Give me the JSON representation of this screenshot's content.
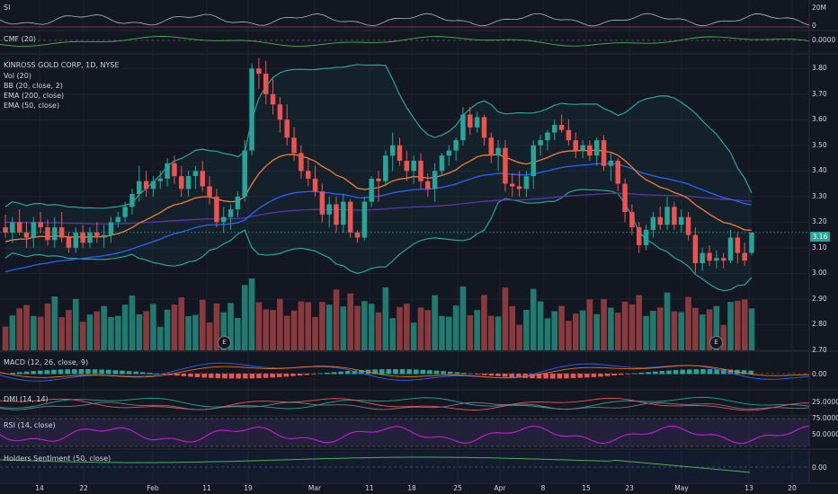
{
  "colors": {
    "background": "#131722",
    "up": "#26a69a",
    "down": "#ef5350",
    "up_volume": "#1f7a70",
    "down_volume": "#8a3a3d",
    "bb": "#26a69a",
    "ema200": "#5b35a8",
    "ema50": "#2962ff",
    "ema20": "#f57c3a",
    "rsi": "#b91dd0"
  },
  "panes": {
    "si": {
      "label": "SI",
      "axis": [
        "20M",
        "0"
      ]
    },
    "cmf": {
      "label": "CMF (20)",
      "axis": [
        "0.0000"
      ]
    },
    "main": {
      "symbol_line": "KINROSS GOLD CORP, 1D, NYSE",
      "indicators": [
        "Vol (20)",
        "BB (20, close, 2)",
        "EMA (200, close)",
        "EMA (50, close)"
      ],
      "axis": [
        "3.80",
        "3.70",
        "3.60",
        "3.50",
        "3.40",
        "3.30",
        "3.20",
        "3.10",
        "3.00",
        "2.90",
        "2.80",
        "2.70"
      ],
      "last_price": "3.16",
      "earnings_marker": "E"
    },
    "macd": {
      "label": "MACD (12, 26, close, 9)",
      "axis": [
        "0.00"
      ]
    },
    "dmi": {
      "label": "DMI (14, 14)",
      "axis": [
        "25.0000"
      ]
    },
    "rsi": {
      "label": "RSI (14, close)",
      "axis": [
        "75.0000",
        "50.0000"
      ]
    },
    "holders": {
      "label": "Holders Sentiment (50, close)",
      "axis": [
        "0.00"
      ]
    }
  },
  "x_axis": [
    "14",
    "22",
    "Feb",
    "11",
    "19",
    "Mar",
    "11",
    "18",
    "25",
    "Apr",
    "8",
    "15",
    "23",
    "May",
    "13",
    "20"
  ],
  "chart_data": {
    "type": "candlestick",
    "price_range": [
      2.7,
      3.85
    ],
    "candles": [
      {
        "o": 3.18,
        "h": 3.23,
        "l": 3.14,
        "c": 3.16
      },
      {
        "o": 3.16,
        "h": 3.22,
        "l": 3.12,
        "c": 3.2
      },
      {
        "o": 3.2,
        "h": 3.25,
        "l": 3.15,
        "c": 3.16
      },
      {
        "o": 3.16,
        "h": 3.2,
        "l": 3.1,
        "c": 3.14
      },
      {
        "o": 3.14,
        "h": 3.22,
        "l": 3.1,
        "c": 3.2
      },
      {
        "o": 3.2,
        "h": 3.24,
        "l": 3.16,
        "c": 3.18
      },
      {
        "o": 3.18,
        "h": 3.21,
        "l": 3.11,
        "c": 3.13
      },
      {
        "o": 3.13,
        "h": 3.22,
        "l": 3.1,
        "c": 3.18
      },
      {
        "o": 3.18,
        "h": 3.24,
        "l": 3.12,
        "c": 3.14
      },
      {
        "o": 3.14,
        "h": 3.16,
        "l": 3.08,
        "c": 3.1
      },
      {
        "o": 3.1,
        "h": 3.18,
        "l": 3.08,
        "c": 3.16
      },
      {
        "o": 3.16,
        "h": 3.19,
        "l": 3.1,
        "c": 3.12
      },
      {
        "o": 3.12,
        "h": 3.18,
        "l": 3.1,
        "c": 3.16
      },
      {
        "o": 3.16,
        "h": 3.2,
        "l": 3.12,
        "c": 3.14
      },
      {
        "o": 3.14,
        "h": 3.19,
        "l": 3.1,
        "c": 3.15
      },
      {
        "o": 3.15,
        "h": 3.22,
        "l": 3.12,
        "c": 3.2
      },
      {
        "o": 3.2,
        "h": 3.24,
        "l": 3.18,
        "c": 3.22
      },
      {
        "o": 3.22,
        "h": 3.28,
        "l": 3.2,
        "c": 3.26
      },
      {
        "o": 3.26,
        "h": 3.33,
        "l": 3.23,
        "c": 3.31
      },
      {
        "o": 3.31,
        "h": 3.42,
        "l": 3.28,
        "c": 3.36
      },
      {
        "o": 3.36,
        "h": 3.4,
        "l": 3.3,
        "c": 3.33
      },
      {
        "o": 3.33,
        "h": 3.38,
        "l": 3.3,
        "c": 3.36
      },
      {
        "o": 3.36,
        "h": 3.4,
        "l": 3.33,
        "c": 3.37
      },
      {
        "o": 3.37,
        "h": 3.45,
        "l": 3.34,
        "c": 3.43
      },
      {
        "o": 3.43,
        "h": 3.46,
        "l": 3.35,
        "c": 3.38
      },
      {
        "o": 3.38,
        "h": 3.42,
        "l": 3.3,
        "c": 3.33
      },
      {
        "o": 3.33,
        "h": 3.4,
        "l": 3.3,
        "c": 3.38
      },
      {
        "o": 3.38,
        "h": 3.42,
        "l": 3.33,
        "c": 3.4
      },
      {
        "o": 3.4,
        "h": 3.44,
        "l": 3.32,
        "c": 3.34
      },
      {
        "o": 3.34,
        "h": 3.38,
        "l": 3.27,
        "c": 3.3
      },
      {
        "o": 3.3,
        "h": 3.33,
        "l": 3.18,
        "c": 3.2
      },
      {
        "o": 3.2,
        "h": 3.26,
        "l": 3.16,
        "c": 3.22
      },
      {
        "o": 3.22,
        "h": 3.27,
        "l": 3.17,
        "c": 3.25
      },
      {
        "o": 3.25,
        "h": 3.32,
        "l": 3.22,
        "c": 3.3
      },
      {
        "o": 3.3,
        "h": 3.52,
        "l": 3.28,
        "c": 3.48
      },
      {
        "o": 3.48,
        "h": 3.82,
        "l": 3.46,
        "c": 3.8
      },
      {
        "o": 3.8,
        "h": 3.84,
        "l": 3.72,
        "c": 3.78
      },
      {
        "o": 3.78,
        "h": 3.83,
        "l": 3.66,
        "c": 3.7
      },
      {
        "o": 3.7,
        "h": 3.76,
        "l": 3.62,
        "c": 3.66
      },
      {
        "o": 3.66,
        "h": 3.69,
        "l": 3.55,
        "c": 3.6
      },
      {
        "o": 3.6,
        "h": 3.66,
        "l": 3.5,
        "c": 3.53
      },
      {
        "o": 3.53,
        "h": 3.57,
        "l": 3.44,
        "c": 3.47
      },
      {
        "o": 3.47,
        "h": 3.5,
        "l": 3.37,
        "c": 3.4
      },
      {
        "o": 3.4,
        "h": 3.45,
        "l": 3.34,
        "c": 3.37
      },
      {
        "o": 3.37,
        "h": 3.42,
        "l": 3.3,
        "c": 3.32
      },
      {
        "o": 3.32,
        "h": 3.35,
        "l": 3.2,
        "c": 3.23
      },
      {
        "o": 3.23,
        "h": 3.3,
        "l": 3.18,
        "c": 3.27
      },
      {
        "o": 3.27,
        "h": 3.3,
        "l": 3.16,
        "c": 3.19
      },
      {
        "o": 3.19,
        "h": 3.31,
        "l": 3.16,
        "c": 3.28
      },
      {
        "o": 3.28,
        "h": 3.29,
        "l": 3.14,
        "c": 3.16
      },
      {
        "o": 3.16,
        "h": 3.17,
        "l": 3.12,
        "c": 3.14
      },
      {
        "o": 3.14,
        "h": 3.3,
        "l": 3.13,
        "c": 3.28
      },
      {
        "o": 3.28,
        "h": 3.38,
        "l": 3.26,
        "c": 3.37
      },
      {
        "o": 3.37,
        "h": 3.4,
        "l": 3.28,
        "c": 3.36
      },
      {
        "o": 3.36,
        "h": 3.48,
        "l": 3.34,
        "c": 3.46
      },
      {
        "o": 3.46,
        "h": 3.55,
        "l": 3.4,
        "c": 3.5
      },
      {
        "o": 3.5,
        "h": 3.53,
        "l": 3.42,
        "c": 3.44
      },
      {
        "o": 3.44,
        "h": 3.48,
        "l": 3.36,
        "c": 3.4
      },
      {
        "o": 3.4,
        "h": 3.46,
        "l": 3.35,
        "c": 3.44
      },
      {
        "o": 3.44,
        "h": 3.47,
        "l": 3.33,
        "c": 3.36
      },
      {
        "o": 3.36,
        "h": 3.39,
        "l": 3.3,
        "c": 3.33
      },
      {
        "o": 3.33,
        "h": 3.43,
        "l": 3.28,
        "c": 3.4
      },
      {
        "o": 3.4,
        "h": 3.47,
        "l": 3.38,
        "c": 3.46
      },
      {
        "o": 3.46,
        "h": 3.5,
        "l": 3.42,
        "c": 3.48
      },
      {
        "o": 3.48,
        "h": 3.53,
        "l": 3.44,
        "c": 3.52
      },
      {
        "o": 3.52,
        "h": 3.65,
        "l": 3.5,
        "c": 3.62
      },
      {
        "o": 3.62,
        "h": 3.65,
        "l": 3.54,
        "c": 3.57
      },
      {
        "o": 3.57,
        "h": 3.63,
        "l": 3.55,
        "c": 3.61
      },
      {
        "o": 3.61,
        "h": 3.62,
        "l": 3.5,
        "c": 3.53
      },
      {
        "o": 3.53,
        "h": 3.55,
        "l": 3.43,
        "c": 3.46
      },
      {
        "o": 3.46,
        "h": 3.52,
        "l": 3.4,
        "c": 3.49
      },
      {
        "o": 3.49,
        "h": 3.52,
        "l": 3.32,
        "c": 3.35
      },
      {
        "o": 3.35,
        "h": 3.39,
        "l": 3.3,
        "c": 3.34
      },
      {
        "o": 3.34,
        "h": 3.4,
        "l": 3.3,
        "c": 3.33
      },
      {
        "o": 3.33,
        "h": 3.4,
        "l": 3.3,
        "c": 3.38
      },
      {
        "o": 3.38,
        "h": 3.52,
        "l": 3.33,
        "c": 3.5
      },
      {
        "o": 3.5,
        "h": 3.54,
        "l": 3.46,
        "c": 3.52
      },
      {
        "o": 3.52,
        "h": 3.56,
        "l": 3.48,
        "c": 3.55
      },
      {
        "o": 3.55,
        "h": 3.6,
        "l": 3.52,
        "c": 3.58
      },
      {
        "o": 3.58,
        "h": 3.62,
        "l": 3.55,
        "c": 3.56
      },
      {
        "o": 3.56,
        "h": 3.6,
        "l": 3.5,
        "c": 3.52
      },
      {
        "o": 3.52,
        "h": 3.55,
        "l": 3.45,
        "c": 3.48
      },
      {
        "o": 3.48,
        "h": 3.52,
        "l": 3.45,
        "c": 3.5
      },
      {
        "o": 3.5,
        "h": 3.52,
        "l": 3.44,
        "c": 3.46
      },
      {
        "o": 3.46,
        "h": 3.53,
        "l": 3.42,
        "c": 3.52
      },
      {
        "o": 3.52,
        "h": 3.54,
        "l": 3.4,
        "c": 3.42
      },
      {
        "o": 3.42,
        "h": 3.47,
        "l": 3.36,
        "c": 3.44
      },
      {
        "o": 3.44,
        "h": 3.45,
        "l": 3.32,
        "c": 3.35
      },
      {
        "o": 3.35,
        "h": 3.37,
        "l": 3.2,
        "c": 3.24
      },
      {
        "o": 3.24,
        "h": 3.27,
        "l": 3.15,
        "c": 3.18
      },
      {
        "o": 3.18,
        "h": 3.2,
        "l": 3.08,
        "c": 3.11
      },
      {
        "o": 3.11,
        "h": 3.19,
        "l": 3.09,
        "c": 3.17
      },
      {
        "o": 3.17,
        "h": 3.24,
        "l": 3.14,
        "c": 3.22
      },
      {
        "o": 3.22,
        "h": 3.26,
        "l": 3.17,
        "c": 3.19
      },
      {
        "o": 3.19,
        "h": 3.3,
        "l": 3.17,
        "c": 3.26
      },
      {
        "o": 3.26,
        "h": 3.28,
        "l": 3.17,
        "c": 3.19
      },
      {
        "o": 3.19,
        "h": 3.25,
        "l": 3.16,
        "c": 3.22
      },
      {
        "o": 3.22,
        "h": 3.24,
        "l": 3.13,
        "c": 3.15
      },
      {
        "o": 3.15,
        "h": 3.18,
        "l": 3.0,
        "c": 3.04
      },
      {
        "o": 3.04,
        "h": 3.1,
        "l": 3.01,
        "c": 3.08
      },
      {
        "o": 3.08,
        "h": 3.11,
        "l": 3.03,
        "c": 3.05
      },
      {
        "o": 3.05,
        "h": 3.09,
        "l": 3.02,
        "c": 3.06
      },
      {
        "o": 3.06,
        "h": 3.08,
        "l": 3.02,
        "c": 3.05
      },
      {
        "o": 3.05,
        "h": 3.17,
        "l": 3.04,
        "c": 3.14
      },
      {
        "o": 3.14,
        "h": 3.16,
        "l": 3.04,
        "c": 3.08
      },
      {
        "o": 3.08,
        "h": 3.12,
        "l": 3.03,
        "c": 3.05
      },
      {
        "o": 3.08,
        "h": 3.16,
        "l": 3.07,
        "c": 3.16
      }
    ]
  }
}
